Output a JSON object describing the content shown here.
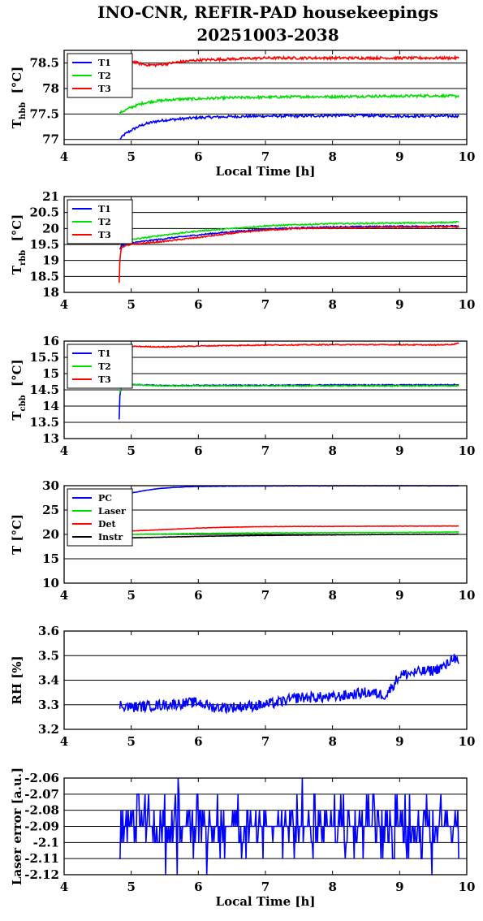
{
  "title": {
    "line1": "INO-CNR, REFIR-PAD housekeepings",
    "line2": "20251003-2038"
  },
  "xaxis": {
    "label": "Local Time [h]",
    "xlim": [
      4,
      10
    ],
    "ticks": [
      4,
      5,
      6,
      7,
      8,
      9,
      10
    ]
  },
  "chart_data": [
    {
      "type": "line",
      "ylabel": "T",
      "ylabel_sub": "hbb",
      "ylabel_unit": "[°C]",
      "xlim": [
        4,
        10
      ],
      "ylim": [
        76.9,
        78.75
      ],
      "yticks": [
        "77",
        "77.5",
        "78",
        "78.5"
      ],
      "grid": "horizontal",
      "legend": "top-left",
      "series": [
        {
          "name": "T1",
          "color": "#0000ff",
          "x": [
            4.83,
            4.9,
            5.0,
            5.1,
            5.2,
            5.35,
            5.5,
            5.7,
            6.0,
            6.5,
            7.0,
            7.5,
            8.0,
            8.5,
            9.0,
            9.5,
            9.88
          ],
          "y": [
            77.0,
            77.1,
            77.18,
            77.25,
            77.3,
            77.35,
            77.38,
            77.4,
            77.43,
            77.45,
            77.46,
            77.46,
            77.47,
            77.47,
            77.46,
            77.46,
            77.46
          ],
          "noise": 0.025
        },
        {
          "name": "T2",
          "color": "#00dd00",
          "x": [
            4.83,
            4.9,
            5.0,
            5.1,
            5.2,
            5.35,
            5.5,
            5.7,
            6.0,
            6.5,
            7.0,
            7.5,
            8.0,
            8.5,
            9.0,
            9.5,
            9.88
          ],
          "y": [
            77.52,
            77.57,
            77.63,
            77.68,
            77.72,
            77.75,
            77.77,
            77.79,
            77.8,
            77.82,
            77.83,
            77.84,
            77.84,
            77.85,
            77.85,
            77.86,
            77.85
          ],
          "noise": 0.025
        },
        {
          "name": "T3",
          "color": "#ff0000",
          "x": [
            4.83,
            4.9,
            5.0,
            5.1,
            5.2,
            5.35,
            5.5,
            5.7,
            6.0,
            6.5,
            7.0,
            7.5,
            8.0,
            8.5,
            9.0,
            9.5,
            9.88
          ],
          "y": [
            78.3,
            78.52,
            78.55,
            78.5,
            78.47,
            78.46,
            78.48,
            78.52,
            78.56,
            78.58,
            78.6,
            78.6,
            78.6,
            78.6,
            78.6,
            78.6,
            78.6
          ],
          "noise": 0.025
        }
      ]
    },
    {
      "type": "line",
      "ylabel": "T",
      "ylabel_sub": "rbb",
      "ylabel_unit": "[°C]",
      "xlim": [
        4,
        10
      ],
      "ylim": [
        18,
        21
      ],
      "yticks": [
        "18",
        "18.5",
        "19",
        "19.5",
        "20",
        "20.5",
        "21"
      ],
      "grid": "horizontal",
      "legend": "top-left",
      "series": [
        {
          "name": "T1",
          "color": "#0000ff",
          "x": [
            4.83,
            4.85,
            4.9,
            5.0,
            5.5,
            6.0,
            6.5,
            7.0,
            7.5,
            8.0,
            8.5,
            9.0,
            9.5,
            9.88
          ],
          "y": [
            19.35,
            19.45,
            19.5,
            19.55,
            19.68,
            19.8,
            19.9,
            19.98,
            20.02,
            20.05,
            20.06,
            20.07,
            20.07,
            20.08
          ],
          "noise": 0.02
        },
        {
          "name": "T2",
          "color": "#00dd00",
          "x": [
            4.83,
            4.85,
            4.9,
            5.0,
            5.5,
            6.0,
            6.5,
            7.0,
            7.5,
            8.0,
            8.5,
            9.0,
            9.5,
            9.88
          ],
          "y": [
            19.5,
            19.55,
            19.6,
            19.65,
            19.8,
            19.92,
            20.0,
            20.08,
            20.12,
            20.15,
            20.16,
            20.17,
            20.18,
            20.2
          ],
          "noise": 0.02
        },
        {
          "name": "T3",
          "color": "#ff0000",
          "x": [
            4.82,
            4.83,
            4.85,
            4.9,
            5.0,
            5.5,
            6.0,
            6.5,
            7.0,
            7.5,
            8.0,
            8.5,
            9.0,
            9.5,
            9.88
          ],
          "y": [
            18.3,
            19.0,
            19.4,
            19.45,
            19.5,
            19.6,
            19.72,
            19.85,
            19.95,
            20.0,
            20.02,
            20.03,
            20.04,
            20.05,
            20.05
          ],
          "noise": 0.02
        }
      ]
    },
    {
      "type": "line",
      "ylabel": "T",
      "ylabel_sub": "cbb",
      "ylabel_unit": "[°C]",
      "xlim": [
        4,
        10
      ],
      "ylim": [
        13,
        16
      ],
      "yticks": [
        "13",
        "13.5",
        "14",
        "14.5",
        "15",
        "15.5",
        "16"
      ],
      "grid": "horizontal",
      "legend": "top-left",
      "series": [
        {
          "name": "T1",
          "color": "#0000ff",
          "x": [
            4.82,
            4.83,
            4.86,
            4.9,
            5.0,
            5.5,
            6.0,
            7.0,
            8.0,
            9.0,
            9.5,
            9.88
          ],
          "y": [
            13.6,
            14.3,
            14.7,
            14.72,
            14.66,
            14.63,
            14.64,
            14.64,
            14.65,
            14.65,
            14.65,
            14.66
          ],
          "noise": 0.015
        },
        {
          "name": "T2",
          "color": "#00dd00",
          "x": [
            4.83,
            4.86,
            4.9,
            5.0,
            5.5,
            6.0,
            7.0,
            8.0,
            9.0,
            9.5,
            9.88
          ],
          "y": [
            14.4,
            14.7,
            14.72,
            14.66,
            14.62,
            14.62,
            14.62,
            14.62,
            14.62,
            14.62,
            14.62
          ],
          "noise": 0.015
        },
        {
          "name": "T3",
          "color": "#ff0000",
          "x": [
            4.83,
            5.0,
            5.5,
            6.0,
            7.0,
            8.0,
            9.0,
            9.5,
            9.8,
            9.88
          ],
          "y": [
            15.86,
            15.84,
            15.82,
            15.85,
            15.88,
            15.89,
            15.89,
            15.88,
            15.9,
            15.95
          ],
          "noise": 0.015
        }
      ]
    },
    {
      "type": "line",
      "ylabel": "T [°C]",
      "xlim": [
        4,
        10
      ],
      "ylim": [
        10,
        30
      ],
      "yticks": [
        "10",
        "15",
        "20",
        "25",
        "30"
      ],
      "grid": "horizontal",
      "legend": "top-left",
      "series": [
        {
          "name": "PC",
          "color": "#0000ff",
          "x": [
            4.83,
            5.0,
            5.2,
            5.4,
            5.6,
            5.8,
            6.0,
            6.5,
            7.0,
            8.0,
            9.0,
            9.88
          ],
          "y": [
            28.0,
            28.5,
            29.0,
            29.4,
            29.6,
            29.75,
            29.85,
            29.9,
            29.95,
            29.97,
            29.98,
            29.98
          ],
          "noise": 0.03
        },
        {
          "name": "Laser",
          "color": "#00dd00",
          "x": [
            4.83,
            5.0,
            5.5,
            6.0,
            7.0,
            8.0,
            9.0,
            9.88
          ],
          "y": [
            19.8,
            20.0,
            20.1,
            20.2,
            20.3,
            20.35,
            20.4,
            20.5
          ],
          "noise": 0.06
        },
        {
          "name": "Det",
          "color": "#ff0000",
          "x": [
            4.83,
            5.0,
            5.5,
            6.0,
            6.5,
            7.0,
            8.0,
            9.0,
            9.88
          ],
          "y": [
            20.5,
            20.7,
            21.0,
            21.3,
            21.5,
            21.6,
            21.65,
            21.7,
            21.72
          ],
          "noise": 0.03
        },
        {
          "name": "Instr",
          "color": "#000000",
          "x": [
            4.83,
            5.0,
            6.0,
            7.0,
            8.0,
            9.0,
            9.88
          ],
          "y": [
            19.2,
            19.3,
            19.6,
            19.8,
            19.9,
            20.0,
            20.05
          ],
          "noise": 0.03
        }
      ]
    },
    {
      "type": "line",
      "ylabel": "RH [%]",
      "xlim": [
        4,
        10
      ],
      "ylim": [
        3.2,
        3.6
      ],
      "yticks": [
        "3.2",
        "3.3",
        "3.4",
        "3.5",
        "3.6"
      ],
      "grid": "horizontal",
      "series": [
        {
          "name": "",
          "color": "#0000ff",
          "x": [
            4.83,
            5.0,
            5.5,
            6.0,
            6.2,
            6.5,
            7.0,
            7.2,
            7.5,
            8.0,
            8.5,
            8.8,
            9.0,
            9.2,
            9.5,
            9.7,
            9.8,
            9.88
          ],
          "y": [
            3.3,
            3.29,
            3.3,
            3.31,
            3.29,
            3.29,
            3.3,
            3.31,
            3.33,
            3.33,
            3.35,
            3.34,
            3.42,
            3.43,
            3.44,
            3.46,
            3.5,
            3.46
          ],
          "noise": 0.022
        }
      ]
    },
    {
      "type": "line",
      "ylabel": "Laser error [a.u.]",
      "xlim": [
        4,
        10
      ],
      "ylim": [
        -2.12,
        -2.06
      ],
      "yticks": [
        "-2.12",
        "-2.11",
        "-2.1",
        "-2.09",
        "-2.08",
        "-2.07",
        "-2.06"
      ],
      "grid": "horizontal",
      "series": [
        {
          "name": "",
          "color": "#0000ff",
          "step": 0.01,
          "baseline": -2.09,
          "x": [
            4.82,
            9.88
          ],
          "y": [
            -2.09,
            -2.09
          ],
          "noise": 0
        }
      ]
    }
  ]
}
